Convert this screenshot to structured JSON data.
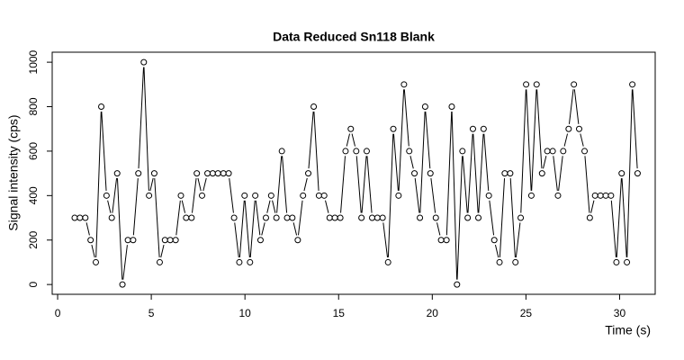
{
  "chart_data": {
    "type": "line",
    "title": "Data Reduced Sn118 Blank",
    "x_label": "Time (s)",
    "y_label": "Signal intensity (cps)",
    "xlim": [
      -0.29,
      31.9
    ],
    "ylim": [
      -44,
      1045
    ],
    "xticks": [
      0,
      5,
      10,
      15,
      20,
      25,
      30
    ],
    "yticks": [
      0,
      200,
      400,
      600,
      800,
      1000
    ],
    "series": [
      {
        "color": "#000000",
        "x": [
          0.91,
          1.19,
          1.48,
          1.76,
          2.04,
          2.33,
          2.61,
          2.89,
          3.18,
          3.46,
          3.75,
          4.03,
          4.31,
          4.6,
          4.88,
          5.16,
          5.45,
          5.73,
          6.01,
          6.3,
          6.58,
          6.86,
          7.15,
          7.43,
          7.71,
          8.0,
          8.28,
          8.56,
          8.85,
          9.13,
          9.42,
          9.7,
          9.98,
          10.27,
          10.55,
          10.83,
          11.12,
          11.4,
          11.68,
          11.97,
          12.25,
          12.53,
          12.82,
          13.1,
          13.38,
          13.67,
          13.95,
          14.23,
          14.52,
          14.8,
          15.09,
          15.37,
          15.65,
          15.94,
          16.22,
          16.5,
          16.79,
          17.07,
          17.35,
          17.64,
          17.92,
          18.2,
          18.49,
          18.77,
          19.05,
          19.34,
          19.62,
          19.9,
          20.19,
          20.47,
          20.76,
          21.04,
          21.32,
          21.61,
          21.89,
          22.17,
          22.46,
          22.74,
          23.02,
          23.31,
          23.59,
          23.87,
          24.16,
          24.44,
          24.72,
          25.01,
          25.29,
          25.57,
          25.86,
          26.14,
          26.43,
          26.71,
          26.99,
          27.28,
          27.56,
          27.84,
          28.13,
          28.41,
          28.69,
          28.98,
          29.26,
          29.54,
          29.83,
          30.11,
          30.39,
          30.68,
          30.96
        ],
        "values": [
          300,
          300,
          300,
          200,
          100,
          800,
          400,
          300,
          500,
          0,
          200,
          200,
          500,
          1000,
          400,
          500,
          100,
          200,
          200,
          200,
          400,
          300,
          300,
          500,
          400,
          500,
          500,
          500,
          500,
          500,
          300,
          100,
          400,
          100,
          400,
          200,
          300,
          400,
          300,
          600,
          300,
          300,
          200,
          400,
          500,
          800,
          400,
          400,
          300,
          300,
          300,
          600,
          700,
          600,
          300,
          600,
          300,
          300,
          300,
          100,
          700,
          400,
          900,
          600,
          500,
          300,
          800,
          500,
          300,
          200,
          200,
          800,
          0,
          600,
          300,
          700,
          300,
          700,
          400,
          200,
          100,
          500,
          500,
          100,
          300,
          900,
          400,
          900,
          500,
          600,
          600,
          400,
          600,
          700,
          900,
          700,
          600,
          300,
          400,
          400,
          400,
          400,
          100,
          500,
          100,
          900,
          500
        ]
      }
    ]
  }
}
